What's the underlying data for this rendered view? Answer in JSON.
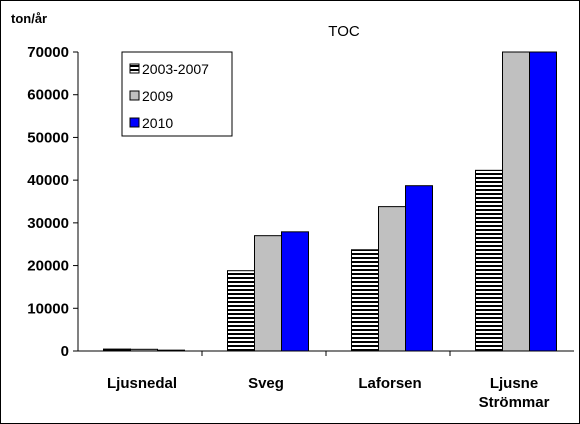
{
  "colors": {
    "series_2003_2007": "hatched-black-white",
    "series_2009": "#C0C0C0",
    "series_2010": "#0000FF"
  },
  "chart_data": {
    "type": "bar",
    "title": "TOC",
    "ylabel": "ton/år",
    "xlabel": "",
    "ylim": [
      0,
      70000
    ],
    "yticks": [
      0,
      10000,
      20000,
      30000,
      40000,
      50000,
      60000,
      70000
    ],
    "grid": false,
    "legend_position": "top-left",
    "categories": [
      [
        "Ljusnedal"
      ],
      [
        "Sveg"
      ],
      [
        "Laforsen"
      ],
      [
        "Ljusne",
        "Strömmar"
      ]
    ],
    "series": [
      {
        "name": "2003-2007",
        "values": [
          450,
          18800,
          23700,
          42300
        ]
      },
      {
        "name": "2009",
        "values": [
          400,
          27000,
          33800,
          70000
        ]
      },
      {
        "name": "2010",
        "values": [
          200,
          27900,
          38700,
          70000
        ]
      }
    ]
  }
}
